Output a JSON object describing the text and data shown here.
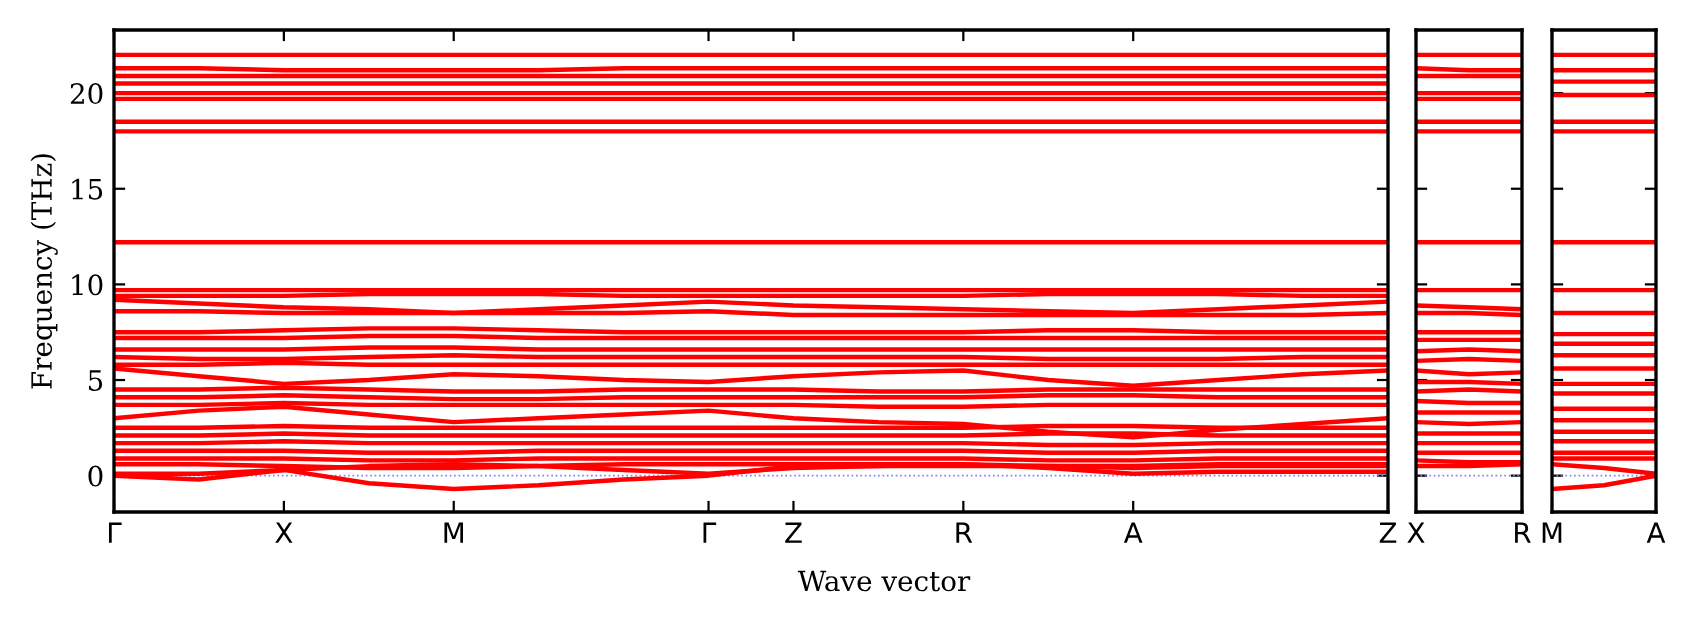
{
  "chart_data": [
    {
      "type": "line",
      "xlabel": "Wave vector",
      "ylabel": "Frequency (THz)",
      "ylim": [
        -1.9,
        23.3
      ],
      "yticks": [
        0,
        5,
        10,
        15,
        20
      ],
      "categories": [
        "Γ",
        null,
        "X",
        null,
        "M",
        null,
        null,
        "Γ",
        "Z",
        null,
        "R",
        null,
        "A",
        null,
        null,
        "Z"
      ],
      "grid": false,
      "legend": false,
      "marker": "none",
      "line_style": "solid",
      "ref_lines": [
        {
          "axis": "y",
          "value": 0,
          "color": "#8080ff",
          "line_style": "dotted"
        }
      ],
      "series": [
        {
          "color": "#ff0000",
          "values": [
            0,
            -0.2,
            0.3,
            -0.4,
            -0.7,
            -0.5,
            -0.2,
            0,
            0.5,
            0.5,
            0.6,
            0.4,
            0.1,
            0.2,
            0.2,
            0.2
          ]
        },
        {
          "color": "#ff0000",
          "values": [
            0.1,
            0.1,
            0.3,
            0.5,
            0.6,
            0.5,
            0.3,
            0.1,
            0.4,
            0.5,
            0.5,
            0.5,
            0.4,
            0.5,
            0.5,
            0.5
          ]
        },
        {
          "color": "#ff0000",
          "values": [
            9.2,
            9.0,
            8.8,
            8.7,
            8.5,
            8.7,
            8.9,
            9.1,
            8.9,
            8.8,
            8.7,
            8.6,
            8.5,
            8.7,
            8.9,
            9.1
          ]
        },
        {
          "color": "#ff0000",
          "values": [
            8.6,
            8.6,
            8.5,
            8.5,
            8.5,
            8.5,
            8.5,
            8.6,
            8.4,
            8.4,
            8.4,
            8.4,
            8.4,
            8.4,
            8.4,
            8.5
          ]
        },
        {
          "color": "#ff0000",
          "values": [
            5.6,
            5.2,
            4.8,
            5.0,
            5.3,
            5.2,
            5.0,
            4.9,
            5.2,
            5.4,
            5.5,
            5.0,
            4.7,
            5.0,
            5.3,
            5.5
          ]
        },
        {
          "color": "#ff0000",
          "values": [
            3.0,
            3.4,
            3.6,
            3.2,
            2.8,
            3.0,
            3.2,
            3.4,
            3.0,
            2.8,
            2.7,
            2.3,
            2.0,
            2.4,
            2.7,
            3.0
          ]
        },
        {
          "color": "#ff0000",
          "values": [
            22.0,
            22.0,
            22.0,
            22.0,
            22.0,
            22.0,
            22.0,
            22.0,
            22.0,
            22.0,
            22.0,
            22.0,
            22.0,
            22.0,
            22.0,
            22.0
          ]
        },
        {
          "color": "#ff0000",
          "values": [
            21.3,
            21.3,
            21.2,
            21.2,
            21.2,
            21.2,
            21.3,
            21.3,
            21.3,
            21.3,
            21.3,
            21.3,
            21.3,
            21.3,
            21.3,
            21.3
          ]
        },
        {
          "color": "#ff0000",
          "values": [
            20.9,
            20.9,
            20.9,
            20.9,
            20.9,
            20.9,
            20.9,
            20.9,
            20.9,
            20.9,
            20.9,
            20.9,
            20.9,
            20.9,
            20.9,
            20.9
          ]
        },
        {
          "color": "#ff0000",
          "values": [
            20.5,
            20.5,
            20.5,
            20.5,
            20.5,
            20.5,
            20.5,
            20.5,
            20.5,
            20.5,
            20.5,
            20.5,
            20.5,
            20.5,
            20.5,
            20.5
          ]
        },
        {
          "color": "#ff0000",
          "values": [
            20.0,
            20.0,
            20.0,
            20.0,
            20.0,
            20.0,
            20.0,
            20.0,
            20.0,
            20.0,
            20.0,
            20.0,
            20.0,
            20.0,
            20.0,
            20.0
          ]
        },
        {
          "color": "#ff0000",
          "values": [
            19.7,
            19.7,
            19.7,
            19.7,
            19.7,
            19.7,
            19.7,
            19.7,
            19.7,
            19.7,
            19.7,
            19.7,
            19.7,
            19.7,
            19.7,
            19.7
          ]
        },
        {
          "color": "#ff0000",
          "values": [
            18.5,
            18.5,
            18.5,
            18.5,
            18.5,
            18.5,
            18.5,
            18.5,
            18.5,
            18.5,
            18.5,
            18.5,
            18.5,
            18.5,
            18.5,
            18.5
          ]
        },
        {
          "color": "#ff0000",
          "values": [
            18.0,
            18.0,
            18.0,
            18.0,
            18.0,
            18.0,
            18.0,
            18.0,
            18.0,
            18.0,
            18.0,
            18.0,
            18.0,
            18.0,
            18.0,
            18.0
          ]
        },
        {
          "color": "#ff0000",
          "values": [
            12.2,
            12.2,
            12.2,
            12.2,
            12.2,
            12.2,
            12.2,
            12.2,
            12.2,
            12.2,
            12.2,
            12.2,
            12.2,
            12.2,
            12.2,
            12.2
          ]
        },
        {
          "color": "#ff0000",
          "values": [
            9.7,
            9.7,
            9.7,
            9.7,
            9.7,
            9.7,
            9.7,
            9.7,
            9.7,
            9.7,
            9.7,
            9.7,
            9.7,
            9.7,
            9.7,
            9.7
          ]
        },
        {
          "color": "#ff0000",
          "values": [
            9.4,
            9.4,
            9.4,
            9.5,
            9.5,
            9.5,
            9.4,
            9.4,
            9.4,
            9.4,
            9.4,
            9.5,
            9.5,
            9.5,
            9.4,
            9.4
          ]
        },
        {
          "color": "#ff0000",
          "values": [
            7.5,
            7.5,
            7.6,
            7.7,
            7.7,
            7.6,
            7.5,
            7.5,
            7.5,
            7.5,
            7.5,
            7.6,
            7.6,
            7.5,
            7.5,
            7.5
          ]
        },
        {
          "color": "#ff0000",
          "values": [
            7.2,
            7.2,
            7.2,
            7.3,
            7.3,
            7.2,
            7.2,
            7.2,
            7.2,
            7.2,
            7.2,
            7.2,
            7.2,
            7.2,
            7.2,
            7.2
          ]
        },
        {
          "color": "#ff0000",
          "values": [
            6.6,
            6.6,
            6.6,
            6.7,
            6.7,
            6.6,
            6.6,
            6.6,
            6.6,
            6.6,
            6.6,
            6.6,
            6.6,
            6.6,
            6.6,
            6.6
          ]
        },
        {
          "color": "#ff0000",
          "values": [
            6.2,
            6.1,
            6.1,
            6.2,
            6.3,
            6.2,
            6.2,
            6.2,
            6.2,
            6.2,
            6.2,
            6.1,
            6.1,
            6.1,
            6.2,
            6.2
          ]
        },
        {
          "color": "#ff0000",
          "values": [
            5.8,
            5.8,
            5.9,
            5.8,
            5.8,
            5.8,
            5.8,
            5.8,
            5.8,
            5.8,
            5.8,
            5.8,
            5.8,
            5.8,
            5.8,
            5.8
          ]
        },
        {
          "color": "#ff0000",
          "values": [
            4.5,
            4.5,
            4.6,
            4.5,
            4.4,
            4.4,
            4.5,
            4.5,
            4.5,
            4.4,
            4.4,
            4.5,
            4.5,
            4.5,
            4.5,
            4.5
          ]
        },
        {
          "color": "#ff0000",
          "values": [
            4.1,
            4.1,
            4.2,
            4.1,
            4.0,
            4.0,
            4.1,
            4.1,
            4.1,
            4.1,
            4.1,
            4.2,
            4.2,
            4.1,
            4.1,
            4.1
          ]
        },
        {
          "color": "#ff0000",
          "values": [
            3.7,
            3.7,
            3.8,
            3.7,
            3.7,
            3.7,
            3.7,
            3.7,
            3.7,
            3.6,
            3.6,
            3.7,
            3.7,
            3.7,
            3.7,
            3.7
          ]
        },
        {
          "color": "#ff0000",
          "values": [
            2.5,
            2.5,
            2.6,
            2.5,
            2.5,
            2.5,
            2.5,
            2.5,
            2.5,
            2.5,
            2.5,
            2.6,
            2.6,
            2.5,
            2.5,
            2.5
          ]
        },
        {
          "color": "#ff0000",
          "values": [
            2.1,
            2.1,
            2.2,
            2.1,
            2.1,
            2.1,
            2.1,
            2.1,
            2.1,
            2.1,
            2.1,
            2.2,
            2.2,
            2.1,
            2.1,
            2.1
          ]
        },
        {
          "color": "#ff0000",
          "values": [
            1.7,
            1.7,
            1.8,
            1.7,
            1.7,
            1.7,
            1.7,
            1.7,
            1.7,
            1.7,
            1.7,
            1.6,
            1.6,
            1.7,
            1.7,
            1.7
          ]
        },
        {
          "color": "#ff0000",
          "values": [
            1.3,
            1.3,
            1.3,
            1.2,
            1.2,
            1.3,
            1.3,
            1.3,
            1.3,
            1.3,
            1.3,
            1.2,
            1.2,
            1.3,
            1.3,
            1.3
          ]
        },
        {
          "color": "#ff0000",
          "values": [
            0.9,
            0.9,
            0.9,
            0.8,
            0.8,
            0.9,
            0.9,
            0.9,
            0.9,
            0.9,
            0.9,
            0.8,
            0.8,
            0.9,
            0.9,
            0.9
          ]
        },
        {
          "color": "#ff0000",
          "values": [
            0.6,
            0.6,
            0.5,
            0.4,
            0.4,
            0.5,
            0.6,
            0.6,
            0.6,
            0.6,
            0.6,
            0.5,
            0.5,
            0.6,
            0.6,
            0.6
          ]
        }
      ]
    },
    {
      "type": "line",
      "ylim": [
        -1.9,
        23.3
      ],
      "yticks": [
        0,
        5,
        10,
        15,
        20
      ],
      "tick_labels": "x",
      "categories": [
        "X",
        null,
        "R"
      ],
      "grid": false,
      "legend": false,
      "marker": "none",
      "line_style": "solid",
      "ref_lines": [
        {
          "axis": "y",
          "value": 0,
          "color": "#8080ff",
          "line_style": "dotted"
        }
      ],
      "series": [
        {
          "color": "#ff0000",
          "values": [
            22.0,
            22.0,
            22.0
          ]
        },
        {
          "color": "#ff0000",
          "values": [
            21.3,
            21.2,
            21.2
          ]
        },
        {
          "color": "#ff0000",
          "values": [
            20.9,
            20.9,
            20.9
          ]
        },
        {
          "color": "#ff0000",
          "values": [
            20.0,
            20.0,
            20.0
          ]
        },
        {
          "color": "#ff0000",
          "values": [
            19.7,
            19.7,
            19.7
          ]
        },
        {
          "color": "#ff0000",
          "values": [
            18.5,
            18.5,
            18.5
          ]
        },
        {
          "color": "#ff0000",
          "values": [
            18.0,
            18.0,
            18.0
          ]
        },
        {
          "color": "#ff0000",
          "values": [
            12.2,
            12.2,
            12.2
          ]
        },
        {
          "color": "#ff0000",
          "values": [
            9.7,
            9.7,
            9.7
          ]
        },
        {
          "color": "#ff0000",
          "values": [
            8.9,
            8.8,
            8.7
          ]
        },
        {
          "color": "#ff0000",
          "values": [
            8.5,
            8.5,
            8.4
          ]
        },
        {
          "color": "#ff0000",
          "values": [
            7.5,
            7.5,
            7.5
          ]
        },
        {
          "color": "#ff0000",
          "values": [
            7.1,
            7.1,
            7.1
          ]
        },
        {
          "color": "#ff0000",
          "values": [
            6.5,
            6.6,
            6.5
          ]
        },
        {
          "color": "#ff0000",
          "values": [
            6.0,
            6.1,
            6.0
          ]
        },
        {
          "color": "#ff0000",
          "values": [
            5.5,
            5.3,
            5.4
          ]
        },
        {
          "color": "#ff0000",
          "values": [
            4.9,
            4.9,
            4.8
          ]
        },
        {
          "color": "#ff0000",
          "values": [
            4.4,
            4.5,
            4.4
          ]
        },
        {
          "color": "#ff0000",
          "values": [
            3.9,
            3.8,
            3.8
          ]
        },
        {
          "color": "#ff0000",
          "values": [
            3.3,
            3.3,
            3.3
          ]
        },
        {
          "color": "#ff0000",
          "values": [
            2.8,
            2.7,
            2.8
          ]
        },
        {
          "color": "#ff0000",
          "values": [
            2.2,
            2.2,
            2.2
          ]
        },
        {
          "color": "#ff0000",
          "values": [
            1.7,
            1.7,
            1.7
          ]
        },
        {
          "color": "#ff0000",
          "values": [
            1.2,
            1.2,
            1.2
          ]
        },
        {
          "color": "#ff0000",
          "values": [
            0.8,
            0.7,
            0.7
          ]
        },
        {
          "color": "#ff0000",
          "values": [
            0.5,
            0.5,
            0.6
          ]
        }
      ]
    },
    {
      "type": "line",
      "ylim": [
        -1.9,
        23.3
      ],
      "yticks": [
        0,
        5,
        10,
        15,
        20
      ],
      "tick_labels": "x",
      "categories": [
        "M",
        null,
        "A"
      ],
      "grid": false,
      "legend": false,
      "marker": "none",
      "line_style": "solid",
      "ref_lines": [
        {
          "axis": "y",
          "value": 0,
          "color": "#8080ff",
          "line_style": "dotted"
        }
      ],
      "series": [
        {
          "color": "#ff0000",
          "values": [
            -0.7,
            -0.5,
            0
          ]
        },
        {
          "color": "#ff0000",
          "values": [
            0.6,
            0.4,
            0.1
          ]
        },
        {
          "color": "#ff0000",
          "values": [
            22.0,
            22.0,
            22.0
          ]
        },
        {
          "color": "#ff0000",
          "values": [
            21.2,
            21.2,
            21.2
          ]
        },
        {
          "color": "#ff0000",
          "values": [
            20.6,
            20.6,
            20.6
          ]
        },
        {
          "color": "#ff0000",
          "values": [
            19.9,
            19.9,
            19.9
          ]
        },
        {
          "color": "#ff0000",
          "values": [
            18.5,
            18.5,
            18.5
          ]
        },
        {
          "color": "#ff0000",
          "values": [
            18.0,
            18.0,
            18.0
          ]
        },
        {
          "color": "#ff0000",
          "values": [
            12.2,
            12.2,
            12.2
          ]
        },
        {
          "color": "#ff0000",
          "values": [
            9.7,
            9.7,
            9.7
          ]
        },
        {
          "color": "#ff0000",
          "values": [
            8.5,
            8.5,
            8.5
          ]
        },
        {
          "color": "#ff0000",
          "values": [
            7.4,
            7.4,
            7.4
          ]
        },
        {
          "color": "#ff0000",
          "values": [
            6.9,
            6.9,
            6.9
          ]
        },
        {
          "color": "#ff0000",
          "values": [
            6.3,
            6.3,
            6.3
          ]
        },
        {
          "color": "#ff0000",
          "values": [
            5.6,
            5.6,
            5.6
          ]
        },
        {
          "color": "#ff0000",
          "values": [
            4.8,
            4.8,
            4.8
          ]
        },
        {
          "color": "#ff0000",
          "values": [
            4.3,
            4.3,
            4.3
          ]
        },
        {
          "color": "#ff0000",
          "values": [
            3.5,
            3.5,
            3.5
          ]
        },
        {
          "color": "#ff0000",
          "values": [
            2.9,
            2.9,
            2.9
          ]
        },
        {
          "color": "#ff0000",
          "values": [
            2.3,
            2.3,
            2.3
          ]
        },
        {
          "color": "#ff0000",
          "values": [
            1.8,
            1.8,
            1.8
          ]
        },
        {
          "color": "#ff0000",
          "values": [
            1.2,
            1.2,
            1.2
          ]
        },
        {
          "color": "#ff0000",
          "values": [
            0.9,
            0.9,
            0.9
          ]
        }
      ]
    }
  ]
}
